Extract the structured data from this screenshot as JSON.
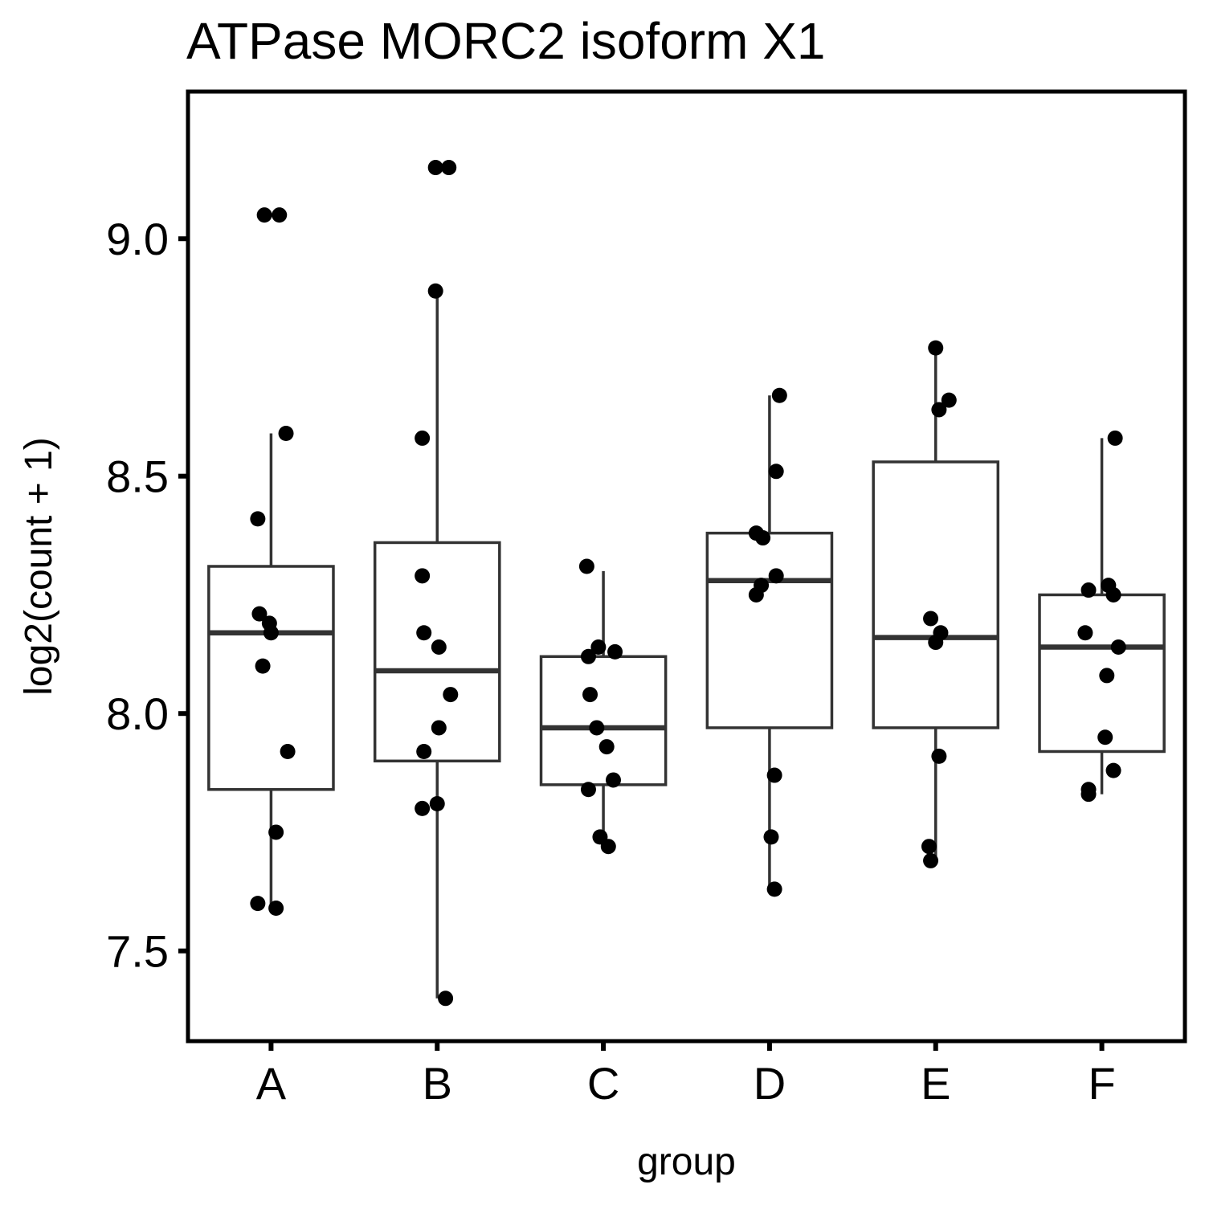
{
  "chart_data": {
    "type": "box",
    "title": "ATPase MORC2 isoform X1",
    "xlabel": "group",
    "ylabel": "log2(count + 1)",
    "ylim": [
      7.31,
      9.31
    ],
    "yticks": [
      "7.5",
      "8.0",
      "8.5",
      "9.0"
    ],
    "categories": [
      "A",
      "B",
      "C",
      "D",
      "E",
      "F"
    ],
    "boxes": [
      {
        "group": "A",
        "q1": 7.84,
        "median": 8.17,
        "q3": 8.31,
        "whisker_low": 7.59,
        "whisker_high": 8.59
      },
      {
        "group": "B",
        "q1": 7.9,
        "median": 8.09,
        "q3": 8.36,
        "whisker_low": 7.4,
        "whisker_high": 8.89
      },
      {
        "group": "C",
        "q1": 7.85,
        "median": 7.97,
        "q3": 8.12,
        "whisker_low": 7.72,
        "whisker_high": 8.3
      },
      {
        "group": "D",
        "q1": 7.97,
        "median": 8.28,
        "q3": 8.38,
        "whisker_low": 7.63,
        "whisker_high": 8.67
      },
      {
        "group": "E",
        "q1": 7.97,
        "median": 8.16,
        "q3": 8.53,
        "whisker_low": 7.69,
        "whisker_high": 8.77
      },
      {
        "group": "F",
        "q1": 7.92,
        "median": 8.14,
        "q3": 8.25,
        "whisker_low": 7.83,
        "whisker_high": 8.58
      }
    ],
    "points": [
      {
        "group": "A",
        "x": -0.04,
        "y": 9.05
      },
      {
        "group": "A",
        "x": 0.05,
        "y": 9.05
      },
      {
        "group": "A",
        "x": 0.09,
        "y": 8.59
      },
      {
        "group": "A",
        "x": -0.08,
        "y": 8.41
      },
      {
        "group": "A",
        "x": -0.07,
        "y": 8.21
      },
      {
        "group": "A",
        "x": -0.01,
        "y": 8.19
      },
      {
        "group": "A",
        "x": 0.0,
        "y": 8.17
      },
      {
        "group": "A",
        "x": -0.05,
        "y": 8.1
      },
      {
        "group": "A",
        "x": 0.1,
        "y": 7.92
      },
      {
        "group": "A",
        "x": 0.03,
        "y": 7.75
      },
      {
        "group": "A",
        "x": -0.08,
        "y": 7.6
      },
      {
        "group": "A",
        "x": 0.03,
        "y": 7.59
      },
      {
        "group": "B",
        "x": -0.01,
        "y": 9.15
      },
      {
        "group": "B",
        "x": 0.07,
        "y": 9.15
      },
      {
        "group": "B",
        "x": -0.01,
        "y": 8.89
      },
      {
        "group": "B",
        "x": -0.09,
        "y": 8.58
      },
      {
        "group": "B",
        "x": -0.09,
        "y": 8.29
      },
      {
        "group": "B",
        "x": -0.08,
        "y": 8.17
      },
      {
        "group": "B",
        "x": 0.01,
        "y": 8.14
      },
      {
        "group": "B",
        "x": 0.08,
        "y": 8.04
      },
      {
        "group": "B",
        "x": 0.01,
        "y": 7.97
      },
      {
        "group": "B",
        "x": -0.08,
        "y": 7.92
      },
      {
        "group": "B",
        "x": 0.0,
        "y": 7.81
      },
      {
        "group": "B",
        "x": -0.09,
        "y": 7.8
      },
      {
        "group": "B",
        "x": 0.05,
        "y": 7.4
      },
      {
        "group": "C",
        "x": -0.1,
        "y": 8.31
      },
      {
        "group": "C",
        "x": -0.03,
        "y": 8.14
      },
      {
        "group": "C",
        "x": 0.07,
        "y": 8.13
      },
      {
        "group": "C",
        "x": -0.09,
        "y": 8.12
      },
      {
        "group": "C",
        "x": -0.08,
        "y": 8.04
      },
      {
        "group": "C",
        "x": -0.04,
        "y": 7.97
      },
      {
        "group": "C",
        "x": 0.02,
        "y": 7.93
      },
      {
        "group": "C",
        "x": 0.06,
        "y": 7.86
      },
      {
        "group": "C",
        "x": -0.09,
        "y": 7.84
      },
      {
        "group": "C",
        "x": -0.02,
        "y": 7.74
      },
      {
        "group": "C",
        "x": 0.03,
        "y": 7.72
      },
      {
        "group": "D",
        "x": 0.06,
        "y": 8.67
      },
      {
        "group": "D",
        "x": 0.04,
        "y": 8.51
      },
      {
        "group": "D",
        "x": -0.08,
        "y": 8.38
      },
      {
        "group": "D",
        "x": -0.04,
        "y": 8.37
      },
      {
        "group": "D",
        "x": 0.04,
        "y": 8.29
      },
      {
        "group": "D",
        "x": -0.05,
        "y": 8.27
      },
      {
        "group": "D",
        "x": -0.08,
        "y": 8.25
      },
      {
        "group": "D",
        "x": 0.03,
        "y": 7.87
      },
      {
        "group": "D",
        "x": 0.01,
        "y": 7.74
      },
      {
        "group": "D",
        "x": 0.03,
        "y": 7.63
      },
      {
        "group": "E",
        "x": 0.0,
        "y": 8.77
      },
      {
        "group": "E",
        "x": 0.08,
        "y": 8.66
      },
      {
        "group": "E",
        "x": 0.02,
        "y": 8.64
      },
      {
        "group": "E",
        "x": -0.03,
        "y": 8.2
      },
      {
        "group": "E",
        "x": 0.03,
        "y": 8.17
      },
      {
        "group": "E",
        "x": 0.0,
        "y": 8.15
      },
      {
        "group": "E",
        "x": 0.02,
        "y": 7.91
      },
      {
        "group": "E",
        "x": -0.04,
        "y": 7.72
      },
      {
        "group": "E",
        "x": -0.03,
        "y": 7.69
      },
      {
        "group": "F",
        "x": 0.08,
        "y": 8.58
      },
      {
        "group": "F",
        "x": 0.04,
        "y": 8.27
      },
      {
        "group": "F",
        "x": -0.08,
        "y": 8.26
      },
      {
        "group": "F",
        "x": 0.07,
        "y": 8.25
      },
      {
        "group": "F",
        "x": -0.1,
        "y": 8.17
      },
      {
        "group": "F",
        "x": 0.1,
        "y": 8.14
      },
      {
        "group": "F",
        "x": 0.03,
        "y": 8.08
      },
      {
        "group": "F",
        "x": 0.02,
        "y": 7.95
      },
      {
        "group": "F",
        "x": 0.07,
        "y": 7.88
      },
      {
        "group": "F",
        "x": -0.08,
        "y": 7.84
      },
      {
        "group": "F",
        "x": -0.08,
        "y": 7.83
      }
    ],
    "colors": {
      "box_stroke": "#333333",
      "point": "#000000",
      "frame": "#000000"
    },
    "grid": false,
    "legend": "none"
  }
}
